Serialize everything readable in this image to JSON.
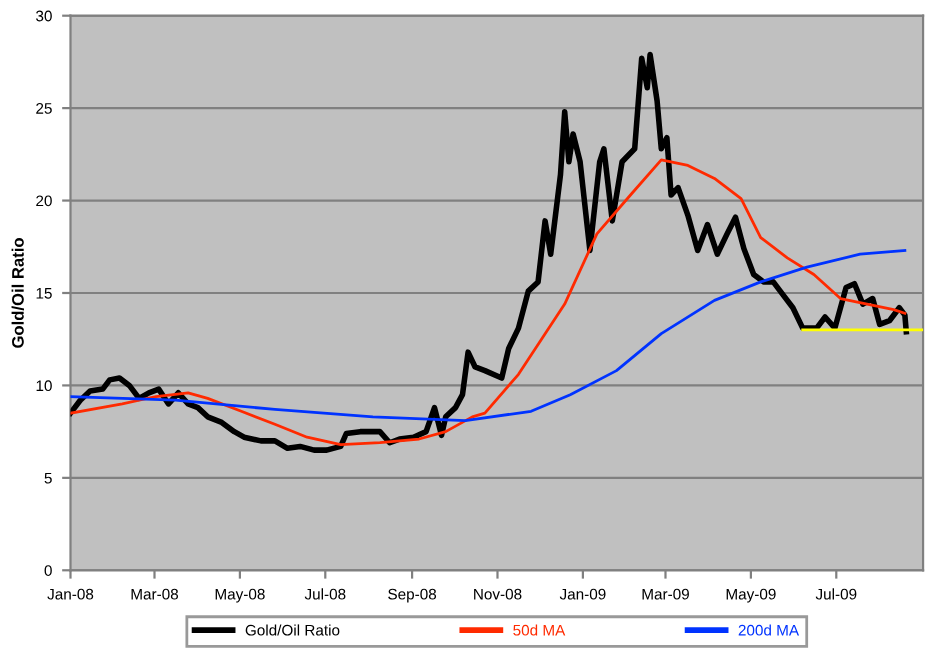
{
  "chart_data": {
    "type": "line",
    "ylabel": "Gold/Oil Ratio",
    "ylim": [
      0,
      30
    ],
    "yticks": [
      0,
      5,
      10,
      15,
      20,
      25,
      30
    ],
    "xlim": [
      "2008-01-01",
      "2009-09-01"
    ],
    "xticks": [
      {
        "value": "2008-01-01",
        "label": "Jan-08"
      },
      {
        "value": "2008-03-01",
        "label": "Mar-08"
      },
      {
        "value": "2008-05-01",
        "label": "May-08"
      },
      {
        "value": "2008-07-01",
        "label": "Jul-08"
      },
      {
        "value": "2008-09-01",
        "label": "Sep-08"
      },
      {
        "value": "2008-11-01",
        "label": "Nov-08"
      },
      {
        "value": "2009-01-01",
        "label": "Jan-09"
      },
      {
        "value": "2009-03-01",
        "label": "Mar-09"
      },
      {
        "value": "2009-05-01",
        "label": "May-09"
      },
      {
        "value": "2009-07-01",
        "label": "Jul-09"
      }
    ],
    "grid": "y",
    "legend": "bottom",
    "marker": "none",
    "line_style": "solid",
    "series": [
      {
        "name": "Gold/Oil Ratio",
        "color": "#000000",
        "x": [
          "2008-01-01",
          "2008-01-08",
          "2008-01-15",
          "2008-01-24",
          "2008-01-29",
          "2008-02-05",
          "2008-02-12",
          "2008-02-19",
          "2008-02-26",
          "2008-03-04",
          "2008-03-11",
          "2008-03-18",
          "2008-03-25",
          "2008-04-01",
          "2008-04-08",
          "2008-04-18",
          "2008-04-27",
          "2008-05-04",
          "2008-05-16",
          "2008-05-26",
          "2008-06-04",
          "2008-06-13",
          "2008-06-23",
          "2008-07-02",
          "2008-07-12",
          "2008-07-16",
          "2008-07-26",
          "2008-08-09",
          "2008-08-16",
          "2008-08-23",
          "2008-09-02",
          "2008-09-11",
          "2008-09-17",
          "2008-09-22",
          "2008-09-25",
          "2008-10-02",
          "2008-10-07",
          "2008-10-11",
          "2008-10-16",
          "2008-10-23",
          "2008-11-04",
          "2008-11-09",
          "2008-11-16",
          "2008-11-23",
          "2008-11-30",
          "2008-12-05",
          "2008-12-09",
          "2008-12-16",
          "2008-12-19",
          "2008-12-22",
          "2008-12-25",
          "2008-12-30",
          "2009-01-06",
          "2009-01-13",
          "2009-01-16",
          "2009-01-22",
          "2009-01-29",
          "2009-02-07",
          "2009-02-12",
          "2009-02-16",
          "2009-02-18",
          "2009-02-23",
          "2009-02-26",
          "2009-03-02",
          "2009-03-05",
          "2009-03-10",
          "2009-03-17",
          "2009-03-24",
          "2009-03-31",
          "2009-04-07",
          "2009-04-14",
          "2009-04-20",
          "2009-04-26",
          "2009-05-03",
          "2009-05-10",
          "2009-05-17",
          "2009-05-24",
          "2009-05-31",
          "2009-06-07",
          "2009-06-17",
          "2009-06-23",
          "2009-06-30",
          "2009-07-08",
          "2009-07-14",
          "2009-07-20",
          "2009-07-27",
          "2009-08-01",
          "2009-08-08",
          "2009-08-15",
          "2009-08-19",
          "2009-08-20"
        ],
        "values": [
          8.5,
          9.2,
          9.7,
          9.8,
          10.3,
          10.4,
          10.0,
          9.3,
          9.6,
          9.8,
          9.0,
          9.6,
          9.0,
          8.8,
          8.3,
          8.0,
          7.5,
          7.2,
          7.0,
          7.0,
          6.6,
          6.7,
          6.5,
          6.5,
          6.7,
          7.4,
          7.5,
          7.5,
          6.9,
          7.1,
          7.2,
          7.5,
          8.8,
          7.3,
          8.3,
          8.8,
          9.5,
          11.8,
          11.0,
          10.8,
          10.4,
          12.0,
          13.1,
          15.1,
          15.6,
          18.9,
          17.1,
          21.4,
          24.8,
          22.1,
          23.6,
          22.1,
          17.3,
          22.1,
          22.8,
          18.9,
          22.1,
          22.8,
          27.7,
          26.1,
          27.9,
          25.4,
          22.8,
          23.4,
          20.3,
          20.7,
          19.2,
          17.3,
          18.7,
          17.1,
          18.2,
          19.1,
          17.4,
          16.0,
          15.6,
          15.6,
          14.9,
          14.2,
          13.1,
          13.1,
          13.7,
          13.1,
          15.3,
          15.5,
          14.4,
          14.7,
          13.3,
          13.5,
          14.2,
          13.8,
          12.9
        ]
      },
      {
        "name": "50d MA",
        "color": "#ff2a00",
        "x": [
          "2008-01-01",
          "2008-02-07",
          "2008-03-02",
          "2008-03-25",
          "2008-04-08",
          "2008-05-02",
          "2008-05-26",
          "2008-06-18",
          "2008-07-12",
          "2008-08-09",
          "2008-09-06",
          "2008-09-25",
          "2008-10-14",
          "2008-10-23",
          "2008-11-16",
          "2008-12-19",
          "2009-01-11",
          "2009-02-04",
          "2009-02-26",
          "2009-03-17",
          "2009-04-05",
          "2009-04-24",
          "2009-05-08",
          "2009-05-27",
          "2009-06-15",
          "2009-07-04",
          "2009-07-23",
          "2009-08-11",
          "2009-08-19"
        ],
        "values": [
          8.5,
          9.0,
          9.4,
          9.6,
          9.3,
          8.6,
          7.9,
          7.2,
          6.8,
          6.9,
          7.1,
          7.5,
          8.3,
          8.5,
          10.6,
          14.4,
          18.2,
          20.3,
          22.2,
          21.9,
          21.2,
          20.1,
          18.0,
          16.9,
          16.0,
          14.7,
          14.4,
          14.1,
          13.9
        ]
      },
      {
        "name": "200d MA",
        "color": "#0033ff",
        "x": [
          "2008-01-01",
          "2008-03-16",
          "2008-05-26",
          "2008-08-04",
          "2008-10-09",
          "2008-11-25",
          "2008-12-23",
          "2009-01-25",
          "2009-02-26",
          "2009-04-05",
          "2009-05-08",
          "2009-06-10",
          "2009-07-18",
          "2009-08-19"
        ],
        "values": [
          9.4,
          9.2,
          8.7,
          8.3,
          8.1,
          8.6,
          9.5,
          10.8,
          12.8,
          14.6,
          15.6,
          16.4,
          17.1,
          17.3
        ]
      },
      {
        "color": "#ffff00",
        "x": [
          "2009-06-07",
          "2009-09-01"
        ],
        "values": [
          13.0,
          13.0
        ]
      }
    ]
  }
}
